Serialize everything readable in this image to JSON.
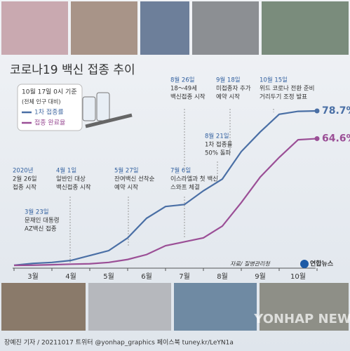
{
  "chart_data": {
    "type": "line",
    "title": "코로나19 백신 접종 추이",
    "legend_title": "10월 17일 0시 기준",
    "legend_subtitle": "(전체 인구 대비)",
    "categories": [
      null,
      "3월",
      null,
      "4월",
      null,
      "5월",
      null,
      "6월",
      null,
      "7월",
      null,
      "8월",
      null,
      "9월",
      null,
      "10월",
      null
    ],
    "series": [
      {
        "name": "1차 접종률",
        "color": "#4a6fa5",
        "values": [
          0.05,
          1,
          1.5,
          2.5,
          5,
          7.5,
          14,
          24,
          30,
          31,
          38,
          44,
          58,
          68,
          77,
          78.5,
          78.7
        ],
        "value_labels": [
          null,
          null,
          null,
          null,
          null,
          null,
          null,
          null,
          null,
          null,
          null,
          null,
          null,
          null,
          null,
          null,
          "78.7%"
        ]
      },
      {
        "name": "접종 완료율",
        "color": "#9b4f96",
        "values": [
          0,
          0.1,
          0.3,
          0.6,
          0.8,
          1.5,
          3,
          5.5,
          10,
          12,
          14,
          20,
          32,
          45,
          55,
          64,
          64.6
        ],
        "value_labels": [
          null,
          null,
          null,
          null,
          null,
          null,
          null,
          null,
          null,
          null,
          null,
          null,
          null,
          null,
          null,
          null,
          "64.6%"
        ]
      }
    ],
    "ylim": [
      0,
      100
    ],
    "annotations": [
      {
        "lines": [
          "2020년",
          "2월 26일",
          "접종 시작"
        ]
      },
      {
        "lines": [
          "3월 23일",
          "문재인 대통령",
          "AZ백신 접종"
        ]
      },
      {
        "lines": [
          "4월 1일",
          "일반인 대상",
          "백신접종 시작"
        ]
      },
      {
        "lines": [
          "5월 27일",
          "잔여백신 선착순",
          "예약 시작"
        ]
      },
      {
        "lines": [
          "7월 6일",
          "이스라엘과 첫 백신",
          "스와프 체결"
        ]
      },
      {
        "lines": [
          "8월 21일",
          "1차 접종률",
          "50% 돌파"
        ]
      },
      {
        "lines": [
          "8월 26일",
          "18～49세",
          "백신접종 시작"
        ]
      },
      {
        "lines": [
          "9월 18일",
          "미접종자 추가",
          "예약 시작"
        ]
      },
      {
        "lines": [
          "10월 15일",
          "위드 코로나 전환 준비",
          "거리두기 조정 발표"
        ]
      }
    ],
    "source": "자료/ 질병관리청",
    "logo": "연합뉴스",
    "watermark": "YONHAP NEWS",
    "footer": "장예진 기자 / 20211017 트위터 @yonhap_graphics 페이스북 tuney.kr/LeYN1a"
  }
}
